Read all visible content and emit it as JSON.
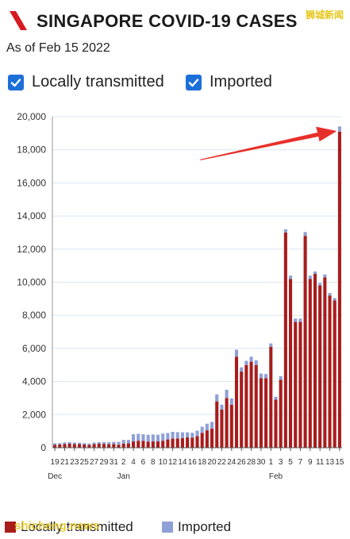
{
  "header": {
    "title": "SINGAPORE COVID-19 CASES",
    "watermark": "狮城新闻",
    "logo_color": "#d71920"
  },
  "as_of": "As of Feb 15 2022",
  "toggles": [
    {
      "label": "Locally transmitted",
      "checked": true
    },
    {
      "label": "Imported",
      "checked": true
    }
  ],
  "colors": {
    "local": "#a81c1c",
    "imported": "#8fa0d8",
    "checkbox": "#1d6fd8",
    "arrow": "#e8302a",
    "axis": "#555555",
    "grid": "#d9e7f2"
  },
  "legend": {
    "items": [
      {
        "label": "Locally transmitted",
        "color": "#a81c1c"
      },
      {
        "label": "Imported",
        "color": "#8fa0d8"
      }
    ],
    "watermark": "shicheng.news"
  },
  "chart_data": {
    "type": "bar",
    "stacked": true,
    "ylim": [
      0,
      20000
    ],
    "yticks": [
      0,
      2000,
      4000,
      6000,
      8000,
      10000,
      12000,
      14000,
      16000,
      18000,
      20000
    ],
    "ytick_labels": [
      "0",
      "2,000",
      "4,000",
      "6,000",
      "8,000",
      "10,000",
      "12,000",
      "14,000",
      "16,000",
      "18,000",
      "20,000"
    ],
    "grid": true,
    "legend_position": "bottom",
    "annotation": "arrow pointing to latest bar",
    "xtick_labels": [
      "19",
      "21",
      "23",
      "25",
      "27",
      "29",
      "31",
      "2",
      "4",
      "6",
      "8",
      "10",
      "12",
      "14",
      "16",
      "18",
      "20",
      "22",
      "24",
      "26",
      "28",
      "30",
      "1",
      "3",
      "5",
      "7",
      "9",
      "11",
      "13",
      "15"
    ],
    "month_labels": [
      {
        "label": "Dec",
        "day_index": 0
      },
      {
        "label": "Jan",
        "day_index": 14
      },
      {
        "label": "Feb",
        "day_index": 45
      }
    ],
    "categories": [
      "Dec 19",
      "Dec 20",
      "Dec 21",
      "Dec 22",
      "Dec 23",
      "Dec 24",
      "Dec 25",
      "Dec 26",
      "Dec 27",
      "Dec 28",
      "Dec 29",
      "Dec 30",
      "Dec 31",
      "Jan 1",
      "Jan 2",
      "Jan 3",
      "Jan 4",
      "Jan 5",
      "Jan 6",
      "Jan 7",
      "Jan 8",
      "Jan 9",
      "Jan 10",
      "Jan 11",
      "Jan 12",
      "Jan 13",
      "Jan 14",
      "Jan 15",
      "Jan 16",
      "Jan 17",
      "Jan 18",
      "Jan 19",
      "Jan 20",
      "Jan 21",
      "Jan 22",
      "Jan 23",
      "Jan 24",
      "Jan 25",
      "Jan 26",
      "Jan 27",
      "Jan 28",
      "Jan 29",
      "Jan 30",
      "Jan 31",
      "Feb 1",
      "Feb 2",
      "Feb 3",
      "Feb 4",
      "Feb 5",
      "Feb 6",
      "Feb 7",
      "Feb 8",
      "Feb 9",
      "Feb 10",
      "Feb 11",
      "Feb 12",
      "Feb 13",
      "Feb 14",
      "Feb 15"
    ],
    "series": [
      {
        "name": "Locally transmitted",
        "values": [
          180,
          200,
          230,
          240,
          220,
          220,
          200,
          170,
          220,
          240,
          230,
          210,
          220,
          180,
          250,
          260,
          380,
          420,
          410,
          360,
          380,
          380,
          420,
          500,
          560,
          560,
          580,
          620,
          600,
          700,
          900,
          1050,
          1150,
          2800,
          2300,
          3000,
          2600,
          5500,
          4600,
          5000,
          5200,
          5000,
          4200,
          4200,
          6100,
          2900,
          4100,
          13000,
          10200,
          7600,
          7600,
          12800,
          10200,
          10500,
          9800,
          10300,
          9200,
          8900,
          19100
        ]
      },
      {
        "name": "Imported",
        "values": [
          90,
          80,
          90,
          100,
          90,
          80,
          80,
          80,
          90,
          100,
          110,
          120,
          130,
          170,
          220,
          210,
          430,
          420,
          400,
          420,
          420,
          400,
          440,
          390,
          400,
          380,
          350,
          310,
          300,
          330,
          370,
          400,
          410,
          420,
          300,
          500,
          380,
          420,
          260,
          250,
          300,
          280,
          280,
          250,
          200,
          180,
          220,
          200,
          200,
          200,
          200,
          230,
          200,
          150,
          150,
          170,
          150,
          140,
          310
        ]
      }
    ]
  }
}
